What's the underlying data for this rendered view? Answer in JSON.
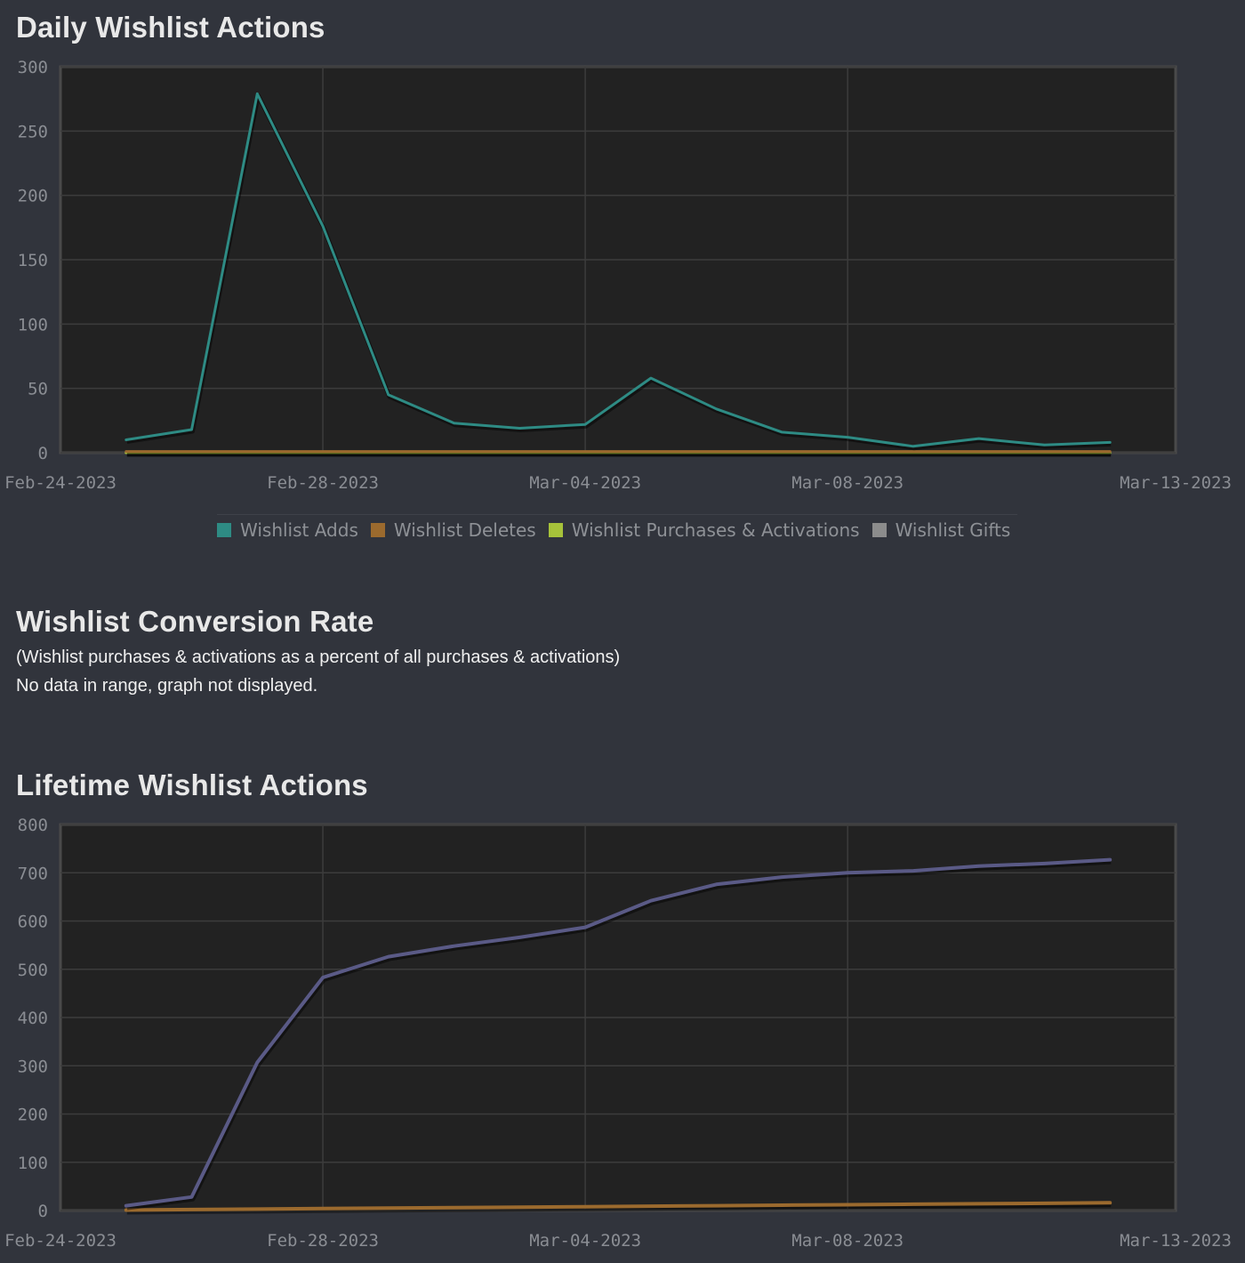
{
  "sections": {
    "daily_title": "Daily Wishlist Actions",
    "conversion_title": "Wishlist Conversion Rate",
    "conversion_subtitle": "(Wishlist purchases & activations as a percent of all purchases & activations)",
    "conversion_no_data": "No data in range, graph not displayed.",
    "lifetime_title": "Lifetime Wishlist Actions"
  },
  "colors": {
    "background": "#31343c",
    "plot_bg": "#222222",
    "grid": "#3c3c3c",
    "adds": "#2e8b84",
    "deletes": "#9b6a2e",
    "purchases": "#a6c23a",
    "gifts": "#8c8c8c",
    "lifetime_line": "#5a5a86"
  },
  "legend": [
    {
      "label": "Wishlist Adds",
      "color": "#2e8b84"
    },
    {
      "label": "Wishlist Deletes",
      "color": "#9b6a2e"
    },
    {
      "label": "Wishlist Purchases & Activations",
      "color": "#a6c23a"
    },
    {
      "label": "Wishlist Gifts",
      "color": "#8c8c8c"
    }
  ],
  "chart_data": [
    {
      "type": "line",
      "title": "Daily Wishlist Actions",
      "xlabel": "",
      "ylabel": "",
      "x_ticks": [
        "Feb-24-2023",
        "Feb-28-2023",
        "Mar-04-2023",
        "Mar-08-2023",
        "Mar-13-2023"
      ],
      "x_range": [
        "Feb-24-2023",
        "Mar-12-2023"
      ],
      "ylim": [
        0,
        300
      ],
      "y_ticks": [
        0,
        50,
        100,
        150,
        200,
        250,
        300
      ],
      "grid": true,
      "legend_position": "bottom",
      "x": [
        "Feb-25-2023",
        "Feb-26-2023",
        "Feb-27-2023",
        "Feb-28-2023",
        "Mar-01-2023",
        "Mar-02-2023",
        "Mar-03-2023",
        "Mar-04-2023",
        "Mar-05-2023",
        "Mar-06-2023",
        "Mar-07-2023",
        "Mar-08-2023",
        "Mar-09-2023",
        "Mar-10-2023",
        "Mar-11-2023",
        "Mar-12-2023"
      ],
      "series": [
        {
          "name": "Wishlist Adds",
          "color": "#2e8b84",
          "values": [
            10,
            18,
            279,
            176,
            45,
            23,
            19,
            22,
            58,
            34,
            16,
            12,
            5,
            11,
            6,
            8
          ]
        },
        {
          "name": "Wishlist Deletes",
          "color": "#9b6a2e",
          "values": [
            1,
            1,
            1,
            1,
            1,
            1,
            1,
            1,
            1,
            1,
            1,
            1,
            1,
            1,
            1,
            1
          ]
        },
        {
          "name": "Wishlist Purchases & Activations",
          "color": "#a6c23a",
          "values": [
            0,
            0,
            0,
            0,
            0,
            0,
            0,
            0,
            0,
            0,
            0,
            0,
            0,
            0,
            0,
            0
          ]
        },
        {
          "name": "Wishlist Gifts",
          "color": "#8c8c8c",
          "values": [
            0,
            0,
            0,
            0,
            0,
            0,
            0,
            0,
            0,
            0,
            0,
            0,
            0,
            0,
            0,
            0
          ]
        }
      ]
    },
    {
      "type": "line",
      "title": "Lifetime Wishlist Actions",
      "xlabel": "",
      "ylabel": "",
      "x_ticks": [
        "Feb-24-2023",
        "Feb-28-2023",
        "Mar-04-2023",
        "Mar-08-2023",
        "Mar-13-2023"
      ],
      "x_range": [
        "Feb-24-2023",
        "Mar-12-2023"
      ],
      "ylim": [
        0,
        800
      ],
      "y_ticks": [
        0,
        100,
        200,
        300,
        400,
        500,
        600,
        700,
        800
      ],
      "grid": true,
      "x": [
        "Feb-25-2023",
        "Feb-26-2023",
        "Feb-27-2023",
        "Feb-28-2023",
        "Mar-01-2023",
        "Mar-02-2023",
        "Mar-03-2023",
        "Mar-04-2023",
        "Mar-05-2023",
        "Mar-06-2023",
        "Mar-07-2023",
        "Mar-08-2023",
        "Mar-09-2023",
        "Mar-10-2023",
        "Mar-11-2023",
        "Mar-12-2023"
      ],
      "series": [
        {
          "color": "#5a5a86",
          "values": [
            10,
            28,
            307,
            483,
            526,
            548,
            566,
            587,
            642,
            676,
            691,
            700,
            704,
            714,
            719,
            727
          ]
        },
        {
          "color": "#9b6a2e",
          "values": [
            1,
            2,
            3,
            4,
            5,
            6,
            7,
            8,
            9,
            10,
            11,
            12,
            13,
            14,
            15,
            16
          ]
        }
      ]
    }
  ]
}
